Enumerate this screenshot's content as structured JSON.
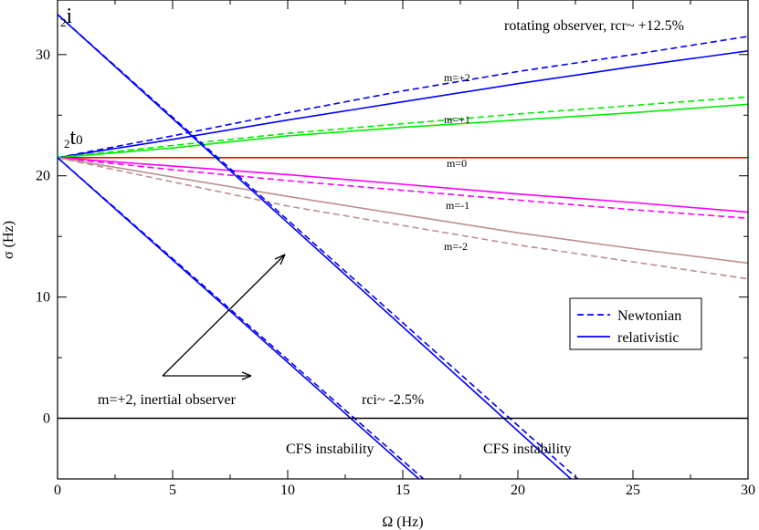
{
  "chart_data": {
    "type": "line",
    "title": "",
    "xlabel": "Ω  (Hz)",
    "ylabel": "σ (Hz)",
    "xlim": [
      0,
      30
    ],
    "ylim": [
      -5,
      34.5
    ],
    "xticks": [
      0,
      5,
      10,
      15,
      20,
      25,
      30
    ],
    "yticks": [
      0,
      10,
      20,
      30
    ],
    "grid": false,
    "legend": {
      "placement": "right-middle",
      "entries": [
        {
          "label": "Newtonian",
          "style": "dashed",
          "color": "#0000ff"
        },
        {
          "label": "relativistic",
          "style": "solid",
          "color": "#0000ff"
        }
      ]
    },
    "series": [
      {
        "group": "m=+2",
        "style": "solid",
        "color": "#0000ff",
        "x": [
          0,
          5,
          10,
          15,
          20,
          25,
          30
        ],
        "y": [
          21.5,
          23.0,
          24.6,
          26.1,
          27.6,
          29.0,
          30.3
        ]
      },
      {
        "group": "m=+2",
        "style": "dashed",
        "color": "#0000ff",
        "x": [
          0,
          5,
          10,
          15,
          20,
          25,
          30
        ],
        "y": [
          21.5,
          23.3,
          25.2,
          27.0,
          28.6,
          30.0,
          31.5
        ]
      },
      {
        "group": "m=+1",
        "style": "solid",
        "color": "#00ee00",
        "x": [
          0,
          5,
          10,
          15,
          20,
          25,
          30
        ],
        "y": [
          21.5,
          22.3,
          23.3,
          24.0,
          24.6,
          25.2,
          25.9
        ]
      },
      {
        "group": "m=+1",
        "style": "dashed",
        "color": "#00ee00",
        "x": [
          0,
          5,
          10,
          15,
          20,
          25,
          30
        ],
        "y": [
          21.5,
          22.5,
          23.5,
          24.3,
          25.1,
          25.8,
          26.5
        ]
      },
      {
        "group": "m=0",
        "style": "solid",
        "color": "#ff0000",
        "x": [
          0,
          30
        ],
        "y": [
          21.5,
          21.5
        ]
      },
      {
        "group": "m=-1",
        "style": "solid",
        "color": "#ff00ff",
        "x": [
          0,
          5,
          10,
          15,
          20,
          25,
          30
        ],
        "y": [
          21.5,
          20.8,
          20.1,
          19.3,
          18.5,
          17.8,
          17.0
        ]
      },
      {
        "group": "m=-1",
        "style": "dashed",
        "color": "#ff00ff",
        "x": [
          0,
          5,
          10,
          15,
          20,
          25,
          30
        ],
        "y": [
          21.5,
          20.5,
          19.6,
          18.8,
          18.0,
          17.2,
          16.5
        ]
      },
      {
        "group": "m=-2",
        "style": "solid",
        "color": "#bc8f8f",
        "x": [
          0,
          5,
          10,
          15,
          20,
          25,
          30
        ],
        "y": [
          21.5,
          19.9,
          18.3,
          16.8,
          15.3,
          14.0,
          12.8
        ]
      },
      {
        "group": "m=-2",
        "style": "dashed",
        "color": "#bc8f8f",
        "x": [
          0,
          5,
          10,
          15,
          20,
          25,
          30
        ],
        "y": [
          21.5,
          19.5,
          17.5,
          15.9,
          14.3,
          12.9,
          11.5
        ]
      },
      {
        "group": "2i",
        "style": "solid",
        "color": "#0000ff",
        "x": [
          0,
          22.3
        ],
        "y": [
          33.3,
          -5
        ]
      },
      {
        "group": "2i",
        "style": "dashed",
        "color": "#0000ff",
        "x": [
          0,
          22.6
        ],
        "y": [
          33.3,
          -5
        ]
      },
      {
        "group": "2t0",
        "style": "solid",
        "color": "#0000ff",
        "x": [
          0,
          15.7
        ],
        "y": [
          21.5,
          -5
        ]
      },
      {
        "group": "2t0",
        "style": "dashed",
        "color": "#0000ff",
        "x": [
          0,
          15.9
        ],
        "y": [
          21.5,
          -5
        ]
      },
      {
        "group": "zero",
        "style": "solid",
        "color": "#000000",
        "x": [
          0,
          30
        ],
        "y": [
          0,
          0
        ]
      }
    ],
    "annotations": {
      "rotating": "rotating observer, rcr~ +12.5%",
      "inertial": "m=+2, inertial observer",
      "rci": "rci~ -2.5%",
      "cfs1": "CFS instability",
      "cfs2": "CFS instability",
      "m_p2": "m=+2",
      "m_p1": "m=+1",
      "m_0": "m=0",
      "m_m1": "m=-1",
      "m_m2": "m=-2",
      "i_sub": "2",
      "i_main": "i",
      "t_sub": "2",
      "t_main": "t",
      "t_sub0": "0"
    }
  }
}
